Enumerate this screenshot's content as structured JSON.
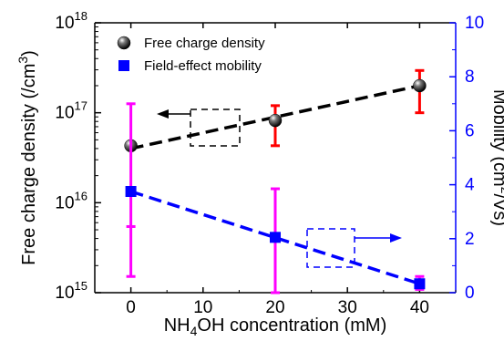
{
  "chart_data": {
    "type": "scatter",
    "x": [
      0,
      20,
      40
    ],
    "xlim": [
      -5,
      45
    ],
    "x_ticks": [
      "0",
      "10",
      "20",
      "30",
      "40"
    ],
    "x_tick_values": [
      0,
      10,
      20,
      30,
      40
    ],
    "xlabel": {
      "pre": "NH",
      "sub": "4",
      "post": "OH concentration (mM)"
    },
    "y_left": {
      "label": {
        "pre": "Free charge density (/cm",
        "sup": "3",
        "post": ")"
      },
      "scale": "log",
      "lim": [
        1000000000000000.0,
        1e+18
      ],
      "ticks": [
        {
          "value": 1000000000000000.0,
          "base": "10",
          "exp": "15"
        },
        {
          "value": 1e+16,
          "base": "10",
          "exp": "16"
        },
        {
          "value": 1e+17,
          "base": "10",
          "exp": "17"
        },
        {
          "value": 1e+18,
          "base": "10",
          "exp": "18"
        }
      ],
      "color": "#000000"
    },
    "y_right": {
      "label": {
        "pre": "Mobility (cm",
        "sup": "2",
        "post": "/Vs)"
      },
      "scale": "linear",
      "lim": [
        0,
        10
      ],
      "ticks": [
        "0",
        "2",
        "4",
        "6",
        "8",
        "10"
      ],
      "tick_values": [
        0,
        2,
        4,
        6,
        8,
        10
      ],
      "color": "#0000ff"
    },
    "series": [
      {
        "name": "Free charge density",
        "axis": "left",
        "marker": "sphere",
        "color": "#000000",
        "error_color": "#ff0000",
        "y": [
          4.3e+16,
          8.2e+16,
          2e+17
        ],
        "y_low": [
          4.3e+16,
          4.3e+16,
          1e+17
        ],
        "y_high": [
          4.3e+16,
          1.2e+17,
          2.95e+17
        ],
        "fit_line": {
          "from": [
            0,
            4e+16
          ],
          "to": [
            40,
            2e+17
          ],
          "dash": true
        }
      },
      {
        "name": "Field-effect mobility",
        "axis": "right",
        "marker": "square",
        "color": "#0000ff",
        "error_color": "#ff00ff",
        "y": [
          3.75,
          2.05,
          0.33
        ],
        "y_low": [
          0.6,
          0.0,
          0.12
        ],
        "y_high": [
          7.0,
          3.85,
          0.6
        ],
        "extra_error_ticks": [
          [
            0,
            2.45
          ]
        ],
        "fit_line": {
          "from": [
            0,
            3.75
          ],
          "to": [
            40,
            0.33
          ],
          "dash": true
        }
      }
    ],
    "legend": {
      "placement": "top-left",
      "entries": [
        "Free charge density",
        "Field-effect mobility"
      ]
    },
    "annotations": [
      {
        "type": "dashed-box",
        "series": "Free charge density",
        "arrow": "left",
        "color": "#000000"
      },
      {
        "type": "dashed-box",
        "series": "Field-effect mobility",
        "arrow": "right",
        "color": "#0000ff"
      }
    ],
    "grid": false
  }
}
